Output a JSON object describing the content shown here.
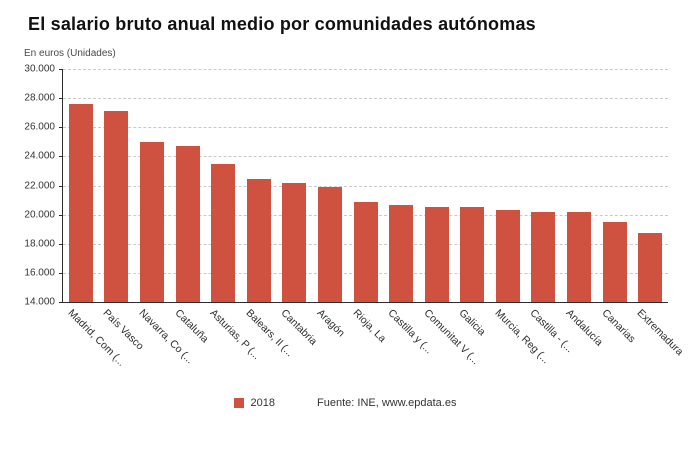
{
  "header": {
    "title": "El salario bruto anual medio por comunidades autónomas",
    "subtitle": "En euros (Unidades)"
  },
  "legend": {
    "series_label": "2018",
    "source": "Fuente: INE, www.epdata.es"
  },
  "colors": {
    "bar": "#cf5240",
    "grid": "#c9c9c9",
    "axis": "#2b2b2b"
  },
  "chart_data": {
    "type": "bar",
    "title": "El salario bruto anual medio por comunidades autónomas",
    "units_label": "En euros (Unidades)",
    "series_name": "2018",
    "source": "Fuente: INE, www.epdata.es",
    "categories": [
      "Madrid, Com (...",
      "País Vasco",
      "Navarra, Co (...",
      "Cataluña",
      "Asturias, P (...",
      "Balears, Il (...",
      "Cantabria",
      "Aragón",
      "Rioja, La",
      "Castilla y (...",
      "Comunitat V (...",
      "Galicia",
      "Murcia, Reg (...",
      "Castilla - (...",
      "Andalucía",
      "Canarias",
      "Extremadura"
    ],
    "values": [
      27600,
      27150,
      25000,
      24700,
      23500,
      22450,
      22150,
      21900,
      20900,
      20650,
      20550,
      20500,
      20300,
      20200,
      20150,
      19500,
      18750
    ],
    "xlabel": "",
    "ylabel": "",
    "ylim": [
      14000,
      30000
    ],
    "ytick_step": 2000,
    "grid": "horizontal-dashed",
    "legend_position": "bottom",
    "bar_color": "#cf5240"
  }
}
